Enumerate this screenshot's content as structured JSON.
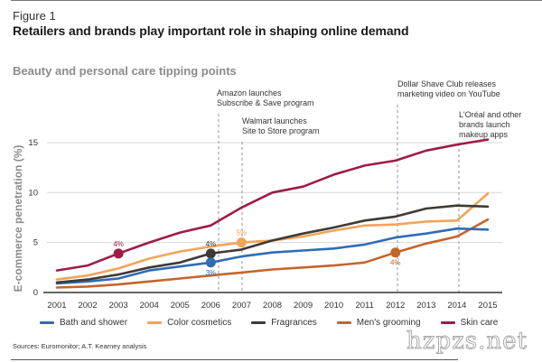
{
  "figure_label": "Figure 1",
  "figure_title": "Retailers and brands play important role in shaping online demand",
  "subtitle": "Beauty and personal care tipping points",
  "source": "Sources: Euromonitor; A.T. Kearney analysis",
  "watermark": "hzpzs.net",
  "chart_data": {
    "type": "line",
    "title": "Beauty and personal care tipping points",
    "xlabel": "",
    "ylabel": "E-commerce penetration (%)",
    "ylim": [
      0,
      15
    ],
    "yticks": [
      "0",
      "5",
      "10",
      "15"
    ],
    "ytick_values": [
      0,
      5,
      10,
      15
    ],
    "grid": true,
    "legend_position": "bottom",
    "x": [
      "2001",
      "2002",
      "2003",
      "2004",
      "2005",
      "2006",
      "2007",
      "2008",
      "2009",
      "2010",
      "2011",
      "2012",
      "2013",
      "2014",
      "2015"
    ],
    "series": [
      {
        "key": "bath",
        "name": "Bath and shower",
        "color": "#2f6db5",
        "values": [
          0.9,
          1.1,
          1.4,
          2.2,
          2.6,
          3.0,
          3.6,
          4.0,
          4.2,
          4.4,
          4.8,
          5.5,
          5.9,
          6.4,
          6.3
        ]
      },
      {
        "key": "color",
        "name": "Color cosmetics",
        "color": "#f0a55a",
        "values": [
          1.3,
          1.7,
          2.4,
          3.4,
          4.1,
          4.6,
          5.0,
          5.2,
          5.6,
          6.2,
          6.7,
          6.8,
          7.1,
          7.2,
          9.9
        ]
      },
      {
        "key": "fragr",
        "name": "Fragrances",
        "color": "#3d3a37",
        "values": [
          1.0,
          1.3,
          1.8,
          2.5,
          3.0,
          3.9,
          4.3,
          5.2,
          5.9,
          6.5,
          7.2,
          7.6,
          8.4,
          8.7,
          8.6
        ]
      },
      {
        "key": "mens",
        "name": "Men's grooming",
        "color": "#c6652a",
        "values": [
          0.5,
          0.6,
          0.8,
          1.1,
          1.4,
          1.7,
          2.0,
          2.3,
          2.5,
          2.7,
          3.0,
          4.0,
          4.9,
          5.6,
          7.3
        ]
      },
      {
        "key": "skin",
        "name": "Skin care",
        "color": "#9e1c47",
        "values": [
          2.2,
          2.7,
          3.9,
          5.0,
          6.0,
          6.7,
          8.5,
          10.0,
          10.6,
          11.8,
          12.7,
          13.2,
          14.2,
          14.8,
          15.3
        ]
      }
    ],
    "markers": [
      {
        "series": "skin",
        "year": "2003",
        "label": "4%",
        "label_pos": "above"
      },
      {
        "series": "fragr",
        "year": "2006",
        "label": "4%",
        "label_pos": "above"
      },
      {
        "series": "bath",
        "year": "2006",
        "label": "3%",
        "label_pos": "below"
      },
      {
        "series": "color",
        "year": "2007",
        "label": "5%",
        "label_pos": "above"
      },
      {
        "series": "mens",
        "year": "2012",
        "label": "4%",
        "label_pos": "below"
      }
    ],
    "annotations": [
      {
        "year": "2006",
        "lines": [
          "Amazon launches",
          "Subscribe & Save program"
        ]
      },
      {
        "year": "2007",
        "lines": [
          "Walmart launches",
          "Site to Store program"
        ]
      },
      {
        "year": "2012",
        "lines": [
          "Dollar Shave Club releases",
          "marketing video on YouTube"
        ]
      },
      {
        "year": "2014",
        "lines": [
          "L'Oréal and other",
          "brands launch",
          "makeup apps"
        ]
      }
    ]
  }
}
